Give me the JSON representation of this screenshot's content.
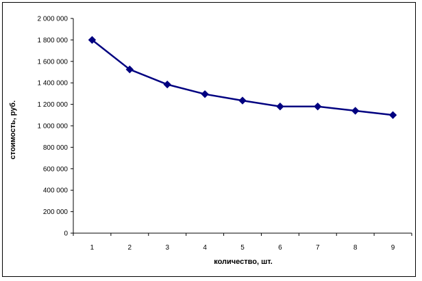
{
  "chart_data": {
    "type": "line",
    "title": "",
    "xlabel": "количество, шт.",
    "ylabel": "стоимость, руб.",
    "categories": [
      "1",
      "2",
      "3",
      "4",
      "5",
      "6",
      "7",
      "8",
      "9"
    ],
    "series": [
      {
        "values": [
          1800000,
          1525000,
          1385000,
          1295000,
          1235000,
          1180000,
          1180000,
          1140000,
          1100000
        ],
        "color": "#000080",
        "marker": "diamond"
      }
    ],
    "ylim": [
      0,
      2000000
    ],
    "yticks": [
      0,
      200000,
      400000,
      600000,
      800000,
      1000000,
      1200000,
      1400000,
      1600000,
      1800000,
      2000000
    ],
    "ytick_labels": [
      "0",
      "200 000",
      "400 000",
      "600 000",
      "800 000",
      "1 000 000",
      "1 200 000",
      "1 400 000",
      "1 600 000",
      "1 800 000",
      "2 000 000"
    ],
    "grid": false,
    "legend": "none"
  }
}
